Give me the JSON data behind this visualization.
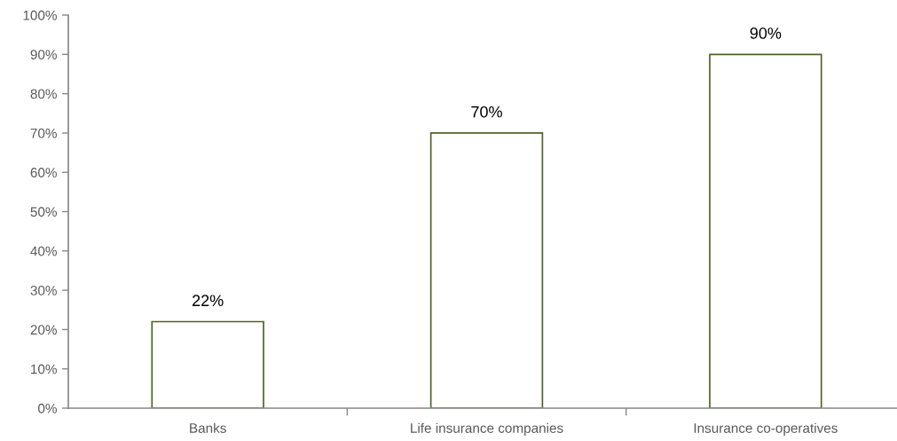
{
  "chart_data": {
    "type": "bar",
    "categories": [
      "Banks",
      "Life insurance companies",
      "Insurance co-operatives"
    ],
    "series": [
      {
        "color": "#4f6228",
        "values": [
          22,
          70,
          90
        ]
      }
    ],
    "value_labels": [
      "22%",
      "70%",
      "90%"
    ],
    "ylim": [
      0,
      100
    ],
    "yticks": [
      {
        "value": 0,
        "label": "0%"
      },
      {
        "value": 10,
        "label": "10%"
      },
      {
        "value": 20,
        "label": "20%"
      },
      {
        "value": 30,
        "label": "30%"
      },
      {
        "value": 40,
        "label": "40%"
      },
      {
        "value": 50,
        "label": "50%"
      },
      {
        "value": 60,
        "label": "60%"
      },
      {
        "value": 70,
        "label": "70%"
      },
      {
        "value": 80,
        "label": "80%"
      },
      {
        "value": 90,
        "label": "90%"
      },
      {
        "value": 100,
        "label": "100%"
      }
    ],
    "grid": false
  }
}
